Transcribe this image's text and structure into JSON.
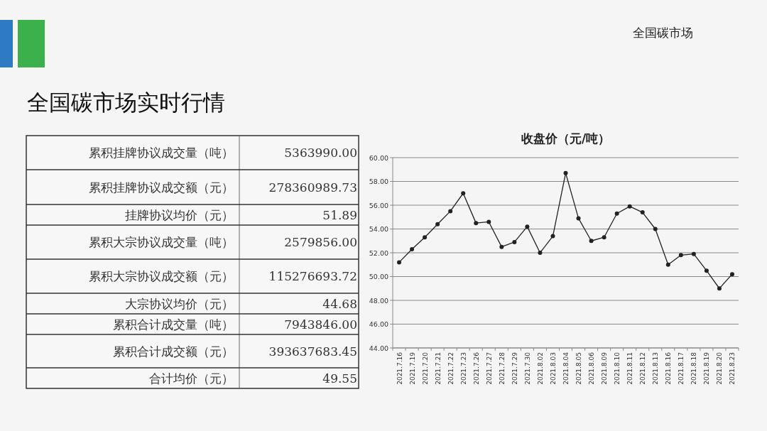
{
  "chart_data": [
    {
      "type": "other",
      "title": "全国碳市场实时行情",
      "annotations": [
        "全国碳市场"
      ],
      "categories": [
        "累积挂牌协议成交量（吨）",
        "累积挂牌协议成交额（元）",
        "挂牌协议均价（元）",
        "累积大宗协议成交量（吨）",
        "累积大宗协议成交额（元）",
        "大宗协议均价（元）",
        "累积合计成交量（吨）",
        "累积合计成交额（元）",
        "合计均价（元）"
      ],
      "value_labels": [
        "5363990.00",
        "278360989.73",
        "51.89",
        "2579856.00",
        "115276693.72",
        "44.68",
        "7943846.00",
        "393637683.45",
        "49.55"
      ]
    },
    {
      "type": "line",
      "title": "收盘价（元/吨）",
      "categories": [
        "2021.7.16",
        "2021.7.19",
        "2021.7.20",
        "2021.7.21",
        "2021.7.22",
        "2021.7.23",
        "2021.7.26",
        "2021.7.27",
        "2021.7.28",
        "2021.7.29",
        "2021.7.30",
        "2021.8.02",
        "2021.8.03",
        "2021.8.04",
        "2021.8.05",
        "2021.8.06",
        "2021.8.09",
        "2021.8.10",
        "2021.8.11",
        "2021.8.12",
        "2021.8.13",
        "2021.8.16",
        "2021.8.17",
        "2021.8.18",
        "2021.8.19",
        "2021.8.20",
        "2021.8.23"
      ],
      "series": [
        {
          "color": "#222222",
          "values": [
            51.2,
            52.3,
            53.3,
            54.4,
            55.5,
            57.0,
            54.5,
            54.6,
            52.5,
            52.9,
            54.2,
            52.0,
            53.4,
            58.7,
            54.9,
            53.0,
            53.3,
            55.3,
            55.9,
            55.4,
            54.0,
            51.0,
            51.8,
            51.9,
            50.5,
            49.0,
            50.2
          ]
        }
      ],
      "ylim": [
        44,
        60
      ],
      "yticks": [
        {
          "value": 44,
          "label": "44.00"
        },
        {
          "value": 46,
          "label": "46.00"
        },
        {
          "value": 48,
          "label": "48.00"
        },
        {
          "value": 50,
          "label": "50.00"
        },
        {
          "value": 52,
          "label": "52.00"
        },
        {
          "value": 54,
          "label": "54.00"
        },
        {
          "value": 56,
          "label": "56.00"
        },
        {
          "value": 58,
          "label": "58.00"
        },
        {
          "value": 60,
          "label": "60.00"
        }
      ],
      "grid": "y",
      "marker": "circle",
      "line_style": "solid",
      "legend": false
    }
  ]
}
